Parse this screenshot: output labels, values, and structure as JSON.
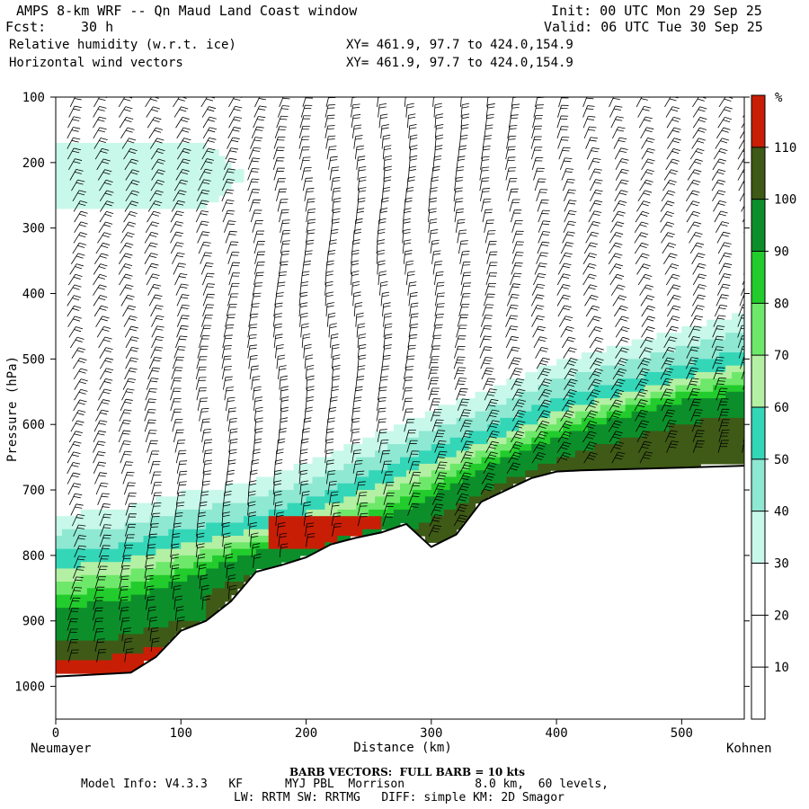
{
  "header": {
    "title": "AMPS 8-km WRF -- Qn Maud Land Coast window",
    "fcst_label": "Fcst:",
    "fcst_value": "30 h",
    "init": "Init: 00 UTC Mon 29 Sep 25",
    "valid": "Valid: 06 UTC Tue 30 Sep 25",
    "field1": "Relative humidity (w.r.t. ice)",
    "field2": "Horizontal wind vectors",
    "xy1": "XY= 461.9, 97.7 to 424.0,154.9",
    "xy2": "XY= 461.9, 97.7 to 424.0,154.9"
  },
  "footer": {
    "barb": "BARB VECTORS:  FULL BARB = 10 kts",
    "model_line1": "Model Info: V4.3.3   KF      MYJ PBL  Morrison          8.0 km,  60 levels,",
    "model_line2": "LW: RRTM SW: RRTMG   DIFF: simple KM: 2D Smagor"
  },
  "chart_data": {
    "type": "heatmap",
    "title": "Relative humidity (w.r.t. ice) cross-section with horizontal wind barbs",
    "xlabel": "Distance (km)",
    "ylabel": "Pressure (hPa)",
    "xlim": [
      0,
      550
    ],
    "ylim": [
      1050,
      100
    ],
    "x_ticks": [
      0,
      100,
      200,
      300,
      400,
      500
    ],
    "y_ticks": [
      100,
      200,
      300,
      400,
      500,
      600,
      700,
      800,
      900,
      1000
    ],
    "x_endpoints": {
      "left": "Neumayer",
      "right": "Kohnen"
    },
    "colorbar": {
      "unit": "%",
      "ticks": [
        10,
        20,
        30,
        40,
        50,
        60,
        70,
        80,
        90,
        100,
        110
      ],
      "levels": [
        {
          "from": 0,
          "to": 30,
          "color": "#ffffff"
        },
        {
          "from": 30,
          "to": 40,
          "color": "#c8f8ea"
        },
        {
          "from": 40,
          "to": 50,
          "color": "#8ee8d2"
        },
        {
          "from": 50,
          "to": 60,
          "color": "#34d6b8"
        },
        {
          "from": 60,
          "to": 70,
          "color": "#b4f0a4"
        },
        {
          "from": 70,
          "to": 80,
          "color": "#6ee86a"
        },
        {
          "from": 80,
          "to": 90,
          "color": "#22cc2c"
        },
        {
          "from": 90,
          "to": 100,
          "color": "#0c8f2a"
        },
        {
          "from": 100,
          "to": 110,
          "color": "#3e5a16"
        },
        {
          "from": 110,
          "to": 120,
          "color": "#c81e06"
        }
      ]
    },
    "terrain_surface": {
      "distance_km": [
        0,
        20,
        40,
        60,
        80,
        100,
        120,
        140,
        160,
        180,
        200,
        220,
        240,
        260,
        280,
        300,
        320,
        340,
        360,
        380,
        400,
        420,
        460,
        500,
        550
      ],
      "pressure_hpa": [
        985,
        983,
        981,
        979,
        955,
        915,
        900,
        870,
        825,
        815,
        803,
        783,
        773,
        765,
        752,
        787,
        768,
        718,
        700,
        682,
        672,
        670,
        668,
        666,
        663
      ]
    },
    "moist_band": {
      "distance_km": [
        0,
        50,
        100,
        150,
        200,
        250,
        300,
        350,
        400,
        450,
        500,
        550
      ],
      "top_pressure_hpa": [
        808,
        800,
        775,
        760,
        730,
        690,
        650,
        615,
        575,
        550,
        525,
        500
      ],
      "core_top_pressure_hpa": [
        880,
        870,
        840,
        800,
        775,
        755,
        710,
        660,
        620,
        590,
        565,
        550
      ]
    }
  }
}
